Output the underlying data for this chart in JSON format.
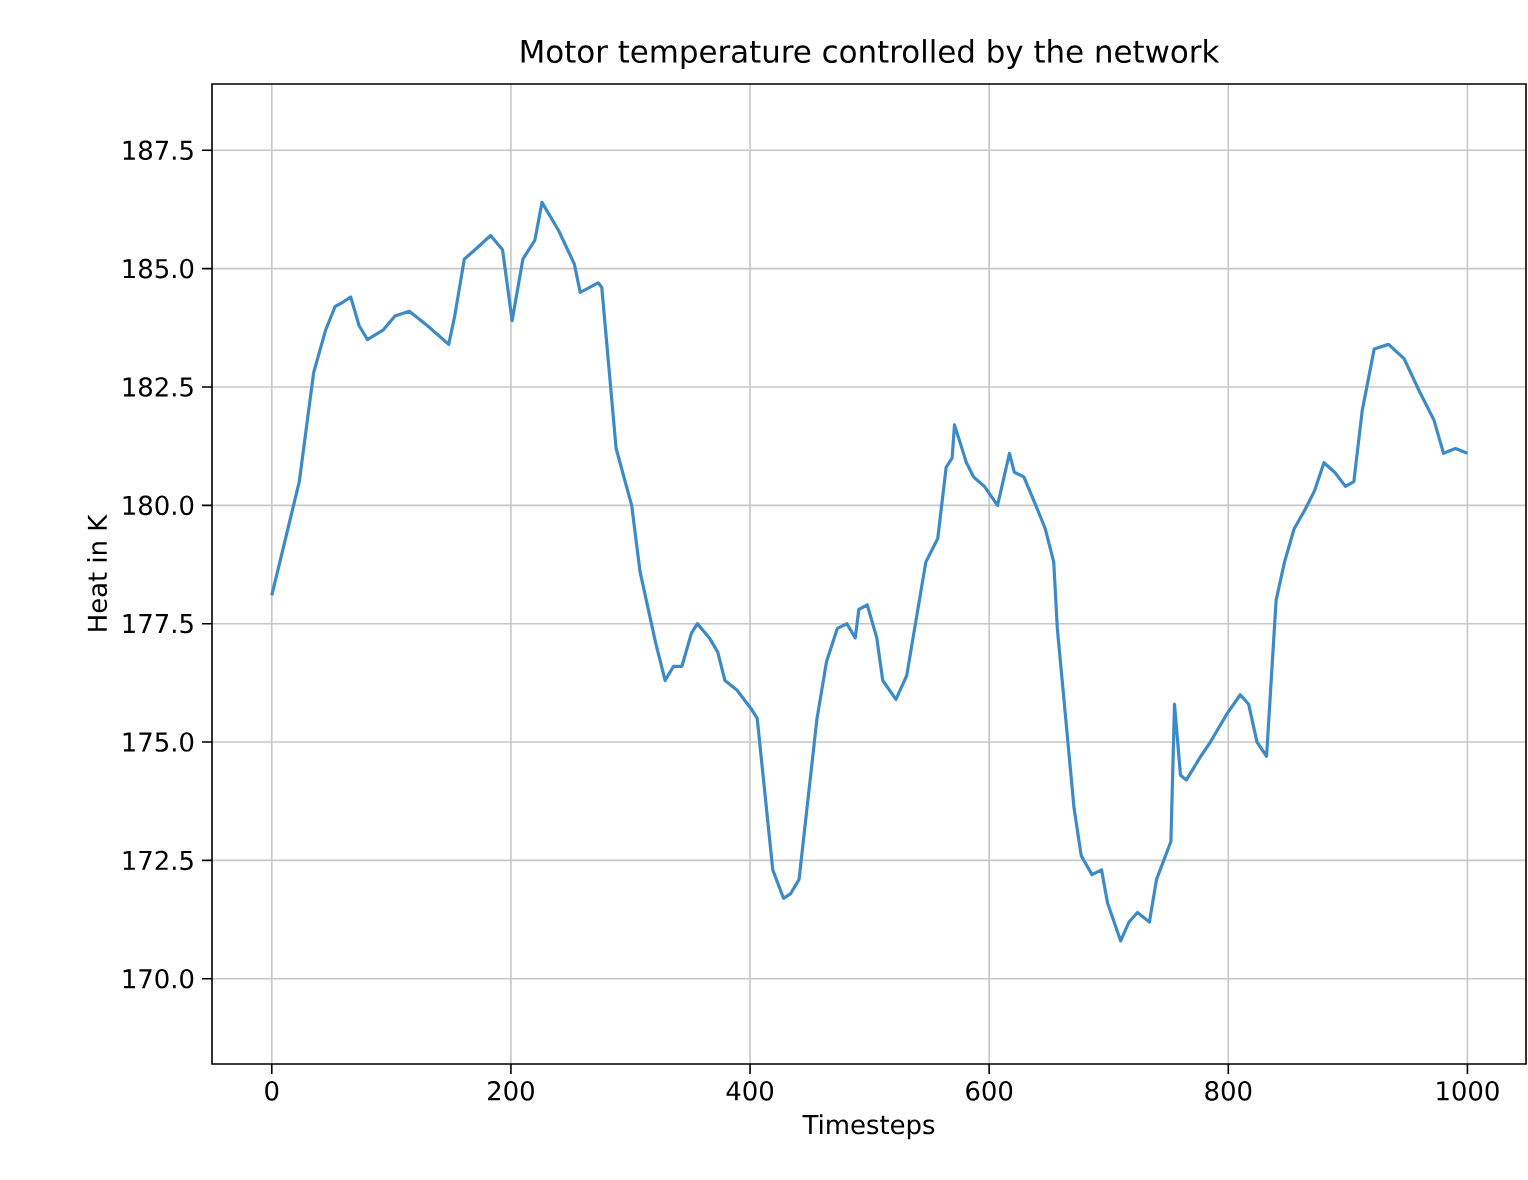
{
  "chart_data": {
    "type": "line",
    "title": "Motor temperature controlled by the network",
    "xlabel": "Timesteps",
    "ylabel": "Heat in K",
    "xlim": [
      -50,
      1049
    ],
    "ylim": [
      168.2,
      188.9
    ],
    "xticks": [
      0,
      200,
      400,
      600,
      800,
      1000
    ],
    "yticks": [
      {
        "value": 170,
        "label": "170.0"
      },
      {
        "value": 172.5,
        "label": "172.5"
      },
      {
        "value": 175,
        "label": "175.0"
      },
      {
        "value": 177.5,
        "label": "177.5"
      },
      {
        "value": 180,
        "label": "180.0"
      },
      {
        "value": 182.5,
        "label": "182.5"
      },
      {
        "value": 185,
        "label": "185.0"
      },
      {
        "value": 187.5,
        "label": "187.5"
      }
    ],
    "grid": true,
    "series": [
      {
        "color": "#3c8ac6",
        "x": [
          0,
          23,
          35,
          45,
          53,
          60,
          66,
          73,
          80,
          93,
          103,
          115,
          130,
          148,
          153,
          161,
          170,
          183,
          193,
          201,
          210,
          220,
          226,
          240,
          253,
          258,
          273,
          276,
          288,
          301,
          308,
          321,
          329,
          336,
          343,
          351,
          356,
          366,
          373,
          379,
          389,
          401,
          406,
          419,
          428,
          434,
          441,
          456,
          464,
          473,
          481,
          488,
          491,
          498,
          506,
          511,
          522,
          531,
          547,
          557,
          564,
          569,
          571,
          581,
          587,
          596,
          607,
          617,
          621,
          629,
          639,
          647,
          654,
          657,
          664,
          671,
          677,
          686,
          694,
          699,
          710,
          717,
          724,
          734,
          740,
          752,
          755,
          760,
          765,
          777,
          785,
          799,
          810,
          817,
          824,
          832,
          840,
          847,
          855,
          864,
          872,
          880,
          889,
          898,
          905,
          912,
          922,
          934,
          947,
          960,
          972,
          980,
          990,
          1000
        ],
        "values": [
          178.1,
          180.5,
          182.8,
          183.7,
          184.2,
          184.3,
          184.4,
          183.8,
          183.5,
          183.7,
          184.0,
          184.1,
          183.8,
          183.4,
          184.0,
          185.2,
          185.4,
          185.7,
          185.4,
          183.9,
          185.2,
          185.6,
          186.4,
          185.8,
          185.1,
          184.5,
          184.7,
          184.6,
          181.2,
          180.0,
          178.6,
          177.1,
          176.3,
          176.6,
          176.6,
          177.3,
          177.5,
          177.2,
          176.9,
          176.3,
          176.1,
          175.7,
          175.5,
          172.3,
          171.7,
          171.8,
          172.1,
          175.5,
          176.7,
          177.4,
          177.5,
          177.2,
          177.8,
          177.9,
          177.2,
          176.3,
          175.9,
          176.4,
          178.8,
          179.3,
          180.8,
          181.0,
          181.7,
          180.9,
          180.6,
          180.4,
          180.0,
          181.1,
          180.7,
          180.6,
          180.0,
          179.5,
          178.8,
          177.4,
          175.5,
          173.6,
          172.6,
          172.2,
          172.3,
          171.6,
          170.8,
          171.2,
          171.4,
          171.2,
          172.1,
          172.9,
          175.8,
          174.3,
          174.2,
          174.7,
          175.0,
          175.6,
          176.0,
          175.8,
          175.0,
          174.7,
          178.0,
          178.8,
          179.5,
          179.9,
          180.3,
          180.9,
          180.7,
          180.4,
          180.5,
          182.0,
          183.3,
          183.4,
          183.1,
          182.4,
          181.8,
          181.1,
          181.2,
          181.1
        ]
      }
    ]
  }
}
